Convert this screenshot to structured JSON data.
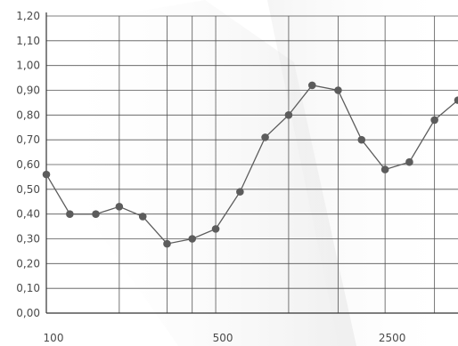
{
  "chart_data": {
    "type": "line",
    "title": "",
    "xlabel": "",
    "ylabel": "",
    "x_scale": "log",
    "x_tick_labels": [
      {
        "value": 100,
        "label": "100"
      },
      {
        "value": 500,
        "label": "500"
      },
      {
        "value": 2500,
        "label": "2500"
      }
    ],
    "x_gridlines": [
      100,
      200,
      315,
      400,
      500,
      1000,
      1600,
      2500,
      4000
    ],
    "y_ticks": [
      {
        "value": 0.0,
        "label": "0,00"
      },
      {
        "value": 0.1,
        "label": "0,10"
      },
      {
        "value": 0.2,
        "label": "0,20"
      },
      {
        "value": 0.3,
        "label": "0,30"
      },
      {
        "value": 0.4,
        "label": "0,40"
      },
      {
        "value": 0.5,
        "label": "0,50"
      },
      {
        "value": 0.6,
        "label": "0,60"
      },
      {
        "value": 0.7,
        "label": "0,70"
      },
      {
        "value": 0.8,
        "label": "0,80"
      },
      {
        "value": 0.9,
        "label": "0,90"
      },
      {
        "value": 1.0,
        "label": "1,00"
      },
      {
        "value": 1.1,
        "label": "1,10"
      },
      {
        "value": 1.2,
        "label": "1,20"
      }
    ],
    "ylim": [
      0,
      1.2
    ],
    "grid": true,
    "series": [
      {
        "color": "#5c5c5c",
        "points": [
          {
            "x": 100,
            "y": 0.56
          },
          {
            "x": 125,
            "y": 0.4
          },
          {
            "x": 160,
            "y": 0.4
          },
          {
            "x": 200,
            "y": 0.43
          },
          {
            "x": 250,
            "y": 0.39
          },
          {
            "x": 315,
            "y": 0.28
          },
          {
            "x": 400,
            "y": 0.3
          },
          {
            "x": 500,
            "y": 0.34
          },
          {
            "x": 630,
            "y": 0.49
          },
          {
            "x": 800,
            "y": 0.71
          },
          {
            "x": 1000,
            "y": 0.8
          },
          {
            "x": 1250,
            "y": 0.92
          },
          {
            "x": 1600,
            "y": 0.9
          },
          {
            "x": 2000,
            "y": 0.7
          },
          {
            "x": 2500,
            "y": 0.58
          },
          {
            "x": 3150,
            "y": 0.61
          },
          {
            "x": 4000,
            "y": 0.78
          },
          {
            "x": 5000,
            "y": 0.86
          }
        ]
      }
    ],
    "colors": {
      "grid": "#555555",
      "axis": "#333333",
      "text": "#4a4a4a",
      "background_shade": "#e9e9e9"
    }
  }
}
